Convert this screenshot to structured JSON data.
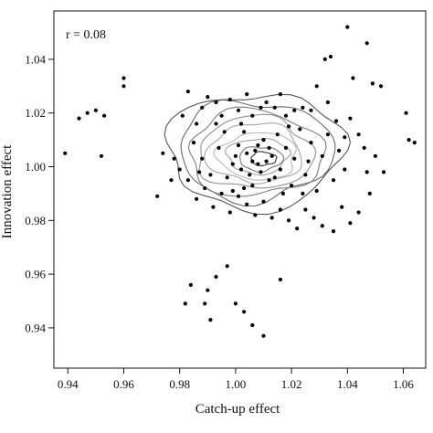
{
  "chart_data": {
    "type": "scatter",
    "title": "",
    "xlabel": "Catch-up effect",
    "ylabel": "Innovation effect",
    "annotation": "r = 0.08",
    "xlim": [
      0.935,
      1.068
    ],
    "ylim": [
      0.925,
      1.058
    ],
    "xticks": [
      0.94,
      0.96,
      0.98,
      1.0,
      1.02,
      1.04,
      1.06
    ],
    "xtick_labels": [
      "0.94",
      "0.96",
      "0.98",
      "1.00",
      "1.02",
      "1.04",
      "1.06"
    ],
    "yticks": [
      0.94,
      0.96,
      0.98,
      1.0,
      1.02,
      1.04
    ],
    "ytick_labels": [
      "0.94",
      "0.96",
      "0.98",
      "1.00",
      "1.02",
      "1.04"
    ],
    "grid": false,
    "point_color": "#000000",
    "contour_colors": [
      "#555555",
      "#6a6a6a",
      "#7e7e7e",
      "#929292",
      "#a6a6a6",
      "#b8b8b8",
      "#a0a0a0",
      "#777777",
      "#333333"
    ],
    "contours": [
      {
        "cx": 1.007,
        "cy": 1.006,
        "rx": 0.0315,
        "ry": 0.0215
      },
      {
        "cx": 1.007,
        "cy": 1.006,
        "rx": 0.0275,
        "ry": 0.0185
      },
      {
        "cx": 1.007,
        "cy": 1.005,
        "rx": 0.024,
        "ry": 0.016
      },
      {
        "cx": 1.007,
        "cy": 1.005,
        "rx": 0.0205,
        "ry": 0.0135
      },
      {
        "cx": 1.007,
        "cy": 1.005,
        "rx": 0.017,
        "ry": 0.011
      },
      {
        "cx": 1.008,
        "cy": 1.004,
        "rx": 0.014,
        "ry": 0.0088
      },
      {
        "cx": 1.008,
        "cy": 1.004,
        "rx": 0.011,
        "ry": 0.0066
      },
      {
        "cx": 1.009,
        "cy": 1.003,
        "rx": 0.0078,
        "ry": 0.0045
      },
      {
        "cx": 1.01,
        "cy": 1.003,
        "rx": 0.0045,
        "ry": 0.0025
      }
    ],
    "points": [
      [
        0.939,
        1.005
      ],
      [
        0.944,
        1.018
      ],
      [
        0.947,
        1.02
      ],
      [
        0.95,
        1.021
      ],
      [
        0.952,
        1.004
      ],
      [
        0.953,
        1.019
      ],
      [
        0.96,
        1.033
      ],
      [
        0.96,
        1.03
      ],
      [
        1.04,
        1.052
      ],
      [
        1.047,
        1.046
      ],
      [
        1.032,
        1.04
      ],
      [
        1.034,
        1.041
      ],
      [
        1.042,
        1.033
      ],
      [
        1.049,
        1.031
      ],
      [
        1.052,
        1.03
      ],
      [
        1.061,
        1.02
      ],
      [
        1.062,
        1.01
      ],
      [
        1.064,
        1.009
      ],
      [
        0.984,
        0.956
      ],
      [
        0.989,
        0.949
      ],
      [
        0.99,
        0.954
      ],
      [
        0.991,
        0.943
      ],
      [
        0.993,
        0.959
      ],
      [
        0.997,
        0.963
      ],
      [
        1.0,
        0.949
      ],
      [
        1.003,
        0.946
      ],
      [
        1.01,
        0.937
      ],
      [
        1.016,
        0.958
      ],
      [
        1.006,
        0.941
      ],
      [
        0.982,
        0.949
      ],
      [
        0.972,
        0.989
      ],
      [
        0.974,
        1.005
      ],
      [
        0.977,
        0.995
      ],
      [
        0.981,
        1.019
      ],
      [
        0.983,
        1.028
      ],
      [
        0.986,
        1.016
      ],
      [
        0.988,
        1.022
      ],
      [
        0.99,
        1.026
      ],
      [
        0.993,
        1.024
      ],
      [
        0.995,
        1.019
      ],
      [
        0.998,
        1.025
      ],
      [
        1.001,
        1.021
      ],
      [
        1.004,
        1.027
      ],
      [
        1.006,
        1.019
      ],
      [
        1.009,
        1.022
      ],
      [
        1.011,
        1.024
      ],
      [
        1.014,
        1.022
      ],
      [
        1.016,
        1.027
      ],
      [
        1.018,
        1.019
      ],
      [
        1.021,
        1.021
      ],
      [
        1.024,
        1.022
      ],
      [
        1.027,
        1.021
      ],
      [
        1.029,
        1.03
      ],
      [
        1.033,
        1.024
      ],
      [
        1.036,
        1.017
      ],
      [
        1.039,
        1.011
      ],
      [
        1.041,
        1.018
      ],
      [
        1.044,
        1.012
      ],
      [
        1.046,
        1.007
      ],
      [
        1.047,
        0.998
      ],
      [
        1.05,
        1.004
      ],
      [
        1.053,
        0.998
      ],
      [
        1.048,
        0.99
      ],
      [
        1.044,
        0.983
      ],
      [
        1.041,
        0.979
      ],
      [
        1.038,
        0.985
      ],
      [
        1.035,
        0.976
      ],
      [
        1.031,
        0.978
      ],
      [
        1.028,
        0.981
      ],
      [
        1.025,
        0.984
      ],
      [
        1.022,
        0.977
      ],
      [
        1.019,
        0.98
      ],
      [
        1.016,
        0.984
      ],
      [
        1.013,
        0.981
      ],
      [
        1.01,
        0.987
      ],
      [
        1.007,
        0.982
      ],
      [
        1.004,
        0.986
      ],
      [
        1.001,
        0.989
      ],
      [
        0.998,
        0.983
      ],
      [
        0.995,
        0.99
      ],
      [
        0.992,
        0.985
      ],
      [
        0.989,
        0.992
      ],
      [
        0.986,
        0.988
      ],
      [
        0.983,
        0.995
      ],
      [
        0.98,
        0.999
      ],
      [
        0.978,
        1.003
      ],
      [
        0.985,
        1.009
      ],
      [
        0.988,
        1.003
      ],
      [
        0.991,
        0.997
      ],
      [
        0.994,
        1.007
      ],
      [
        0.996,
        1.013
      ],
      [
        0.999,
        1.001
      ],
      [
        1.001,
        1.008
      ],
      [
        1.003,
        1.013
      ],
      [
        1.005,
        0.997
      ],
      [
        1.007,
        1.006
      ],
      [
        1.008,
        1.001
      ],
      [
        1.01,
        1.01
      ],
      [
        1.012,
        0.995
      ],
      [
        1.013,
        1.004
      ],
      [
        1.015,
        1.012
      ],
      [
        1.016,
        0.999
      ],
      [
        1.018,
        1.007
      ],
      [
        1.02,
        0.993
      ],
      [
        1.021,
        1.003
      ],
      [
        1.023,
        1.014
      ],
      [
        1.025,
        0.997
      ],
      [
        1.027,
        1.009
      ],
      [
        1.029,
        0.991
      ],
      [
        1.031,
        1.004
      ],
      [
        1.033,
        1.012
      ],
      [
        1.035,
        0.995
      ],
      [
        1.037,
        1.006
      ],
      [
        1.039,
        0.999
      ],
      [
        0.997,
        0.996
      ],
      [
        1.0,
        1.004
      ],
      [
        1.002,
        0.999
      ],
      [
        1.004,
        1.005
      ],
      [
        1.006,
        1.002
      ],
      [
        1.008,
        1.008
      ],
      [
        1.009,
        0.998
      ],
      [
        1.011,
        1.002
      ],
      [
        1.012,
        1.007
      ],
      [
        1.014,
        0.996
      ],
      [
        1.006,
        0.993
      ],
      [
        1.002,
        1.016
      ],
      [
        0.993,
        1.016
      ],
      [
        0.987,
        0.998
      ],
      [
        1.019,
        1.015
      ],
      [
        1.026,
        1.002
      ],
      [
        1.024,
        0.99
      ],
      [
        1.017,
        0.99
      ],
      [
        0.999,
        0.991
      ],
      [
        1.003,
        0.992
      ]
    ]
  }
}
